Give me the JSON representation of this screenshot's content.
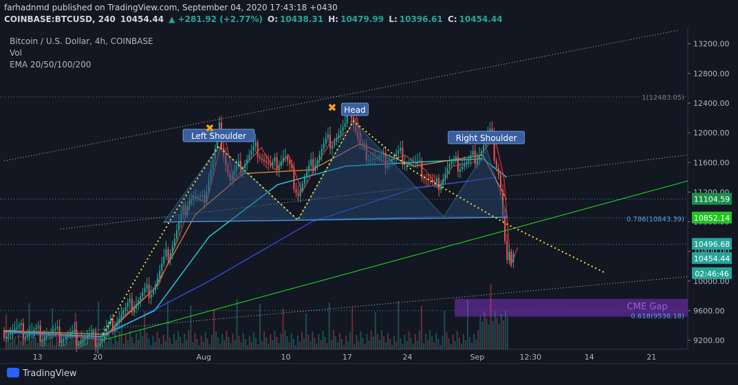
{
  "header": {
    "line1": "farhadnmd published on TradingView.com, September 04, 2020 17:43:18 +0430",
    "symbol": "COINBASE:BTCUSD, 240",
    "last": "10454.44",
    "change": "▲ +281.92 (+2.77%)",
    "o_label": "O:",
    "o": "10438.31",
    "h_label": "H:",
    "h": "10479.99",
    "l_label": "L:",
    "l": "10396.61",
    "c_label": "C:",
    "c": "10454.44"
  },
  "legend": {
    "title": "Bitcoin / U.S. Dollar, 4h, COINBASE",
    "vol": "Vol",
    "ema": "EMA 20/50/100/200"
  },
  "footer": {
    "brand": "TradingView"
  },
  "colors": {
    "background": "#131722",
    "up": "#26a69a",
    "down": "#ef5350",
    "pattern_fill": "#2a4a7a",
    "pattern_stroke": "#4a8fd8",
    "dotted_yellow": "#f5e72a",
    "support_green": "#22c322",
    "cme_gap": "#7b2fbf",
    "ema20": "#e0383e",
    "ema50": "#e08a3c",
    "ema100": "#26c6da",
    "ema200": "#3248c8"
  },
  "chart_data": {
    "type": "candlestick",
    "title": "Bitcoin / U.S. Dollar, 4h, COINBASE",
    "ylim": [
      9080,
      13420
    ],
    "y_ticks": [
      "13200.00",
      "12800.00",
      "12400.00",
      "12000.00",
      "11600.00",
      "11200.00",
      "10800.00",
      "10400.00",
      "10000.00",
      "9600.00",
      "9200.00"
    ],
    "x_ticks": [
      "13",
      "20",
      "Aug",
      "10",
      "17",
      "24",
      "Sep",
      "12:30",
      "14",
      "21"
    ],
    "price_labels": [
      {
        "value": 11104.59,
        "text": "11104.59",
        "color": "#26a69a"
      },
      {
        "value": 10852.14,
        "text": "10852.14",
        "color": "#26a69a"
      },
      {
        "value": 10496.68,
        "text": "10496.68",
        "color": "#26a69a"
      },
      {
        "value": 10454.44,
        "text": "10454.44",
        "color": "#26a69a"
      },
      {
        "value": 10350,
        "text": "02:46:46",
        "color": "#26a69a"
      }
    ],
    "annotations": {
      "left_shoulder": "Left Shoulder",
      "head": "Head",
      "right_shoulder": "Right Shoulder",
      "cme_gap": "CME Gap",
      "fib_1": "1(12483.05)",
      "fib_0786": "0.786(10843.39)",
      "fib_0618": "0.618(9536.18)"
    },
    "close_path": [
      {
        "x": 0.0,
        "y": 9340
      },
      {
        "x": 0.05,
        "y": 9300
      },
      {
        "x": 0.1,
        "y": 9250
      },
      {
        "x": 0.14,
        "y": 9200
      },
      {
        "x": 0.16,
        "y": 9450
      },
      {
        "x": 0.19,
        "y": 9700
      },
      {
        "x": 0.22,
        "y": 9950
      },
      {
        "x": 0.25,
        "y": 10600
      },
      {
        "x": 0.27,
        "y": 11150
      },
      {
        "x": 0.29,
        "y": 11050
      },
      {
        "x": 0.31,
        "y": 11800
      },
      {
        "x": 0.315,
        "y": 12050
      },
      {
        "x": 0.33,
        "y": 11350
      },
      {
        "x": 0.35,
        "y": 11600
      },
      {
        "x": 0.37,
        "y": 11800
      },
      {
        "x": 0.39,
        "y": 11500
      },
      {
        "x": 0.41,
        "y": 11700
      },
      {
        "x": 0.43,
        "y": 11200
      },
      {
        "x": 0.45,
        "y": 11550
      },
      {
        "x": 0.47,
        "y": 11850
      },
      {
        "x": 0.5,
        "y": 12050
      },
      {
        "x": 0.505,
        "y": 12400
      },
      {
        "x": 0.52,
        "y": 11800
      },
      {
        "x": 0.55,
        "y": 11600
      },
      {
        "x": 0.58,
        "y": 11700
      },
      {
        "x": 0.61,
        "y": 11500
      },
      {
        "x": 0.63,
        "y": 11250
      },
      {
        "x": 0.65,
        "y": 11550
      },
      {
        "x": 0.68,
        "y": 11600
      },
      {
        "x": 0.7,
        "y": 11800
      },
      {
        "x": 0.71,
        "y": 12000
      },
      {
        "x": 0.725,
        "y": 11400
      },
      {
        "x": 0.735,
        "y": 10200
      },
      {
        "x": 0.745,
        "y": 10454
      }
    ]
  }
}
